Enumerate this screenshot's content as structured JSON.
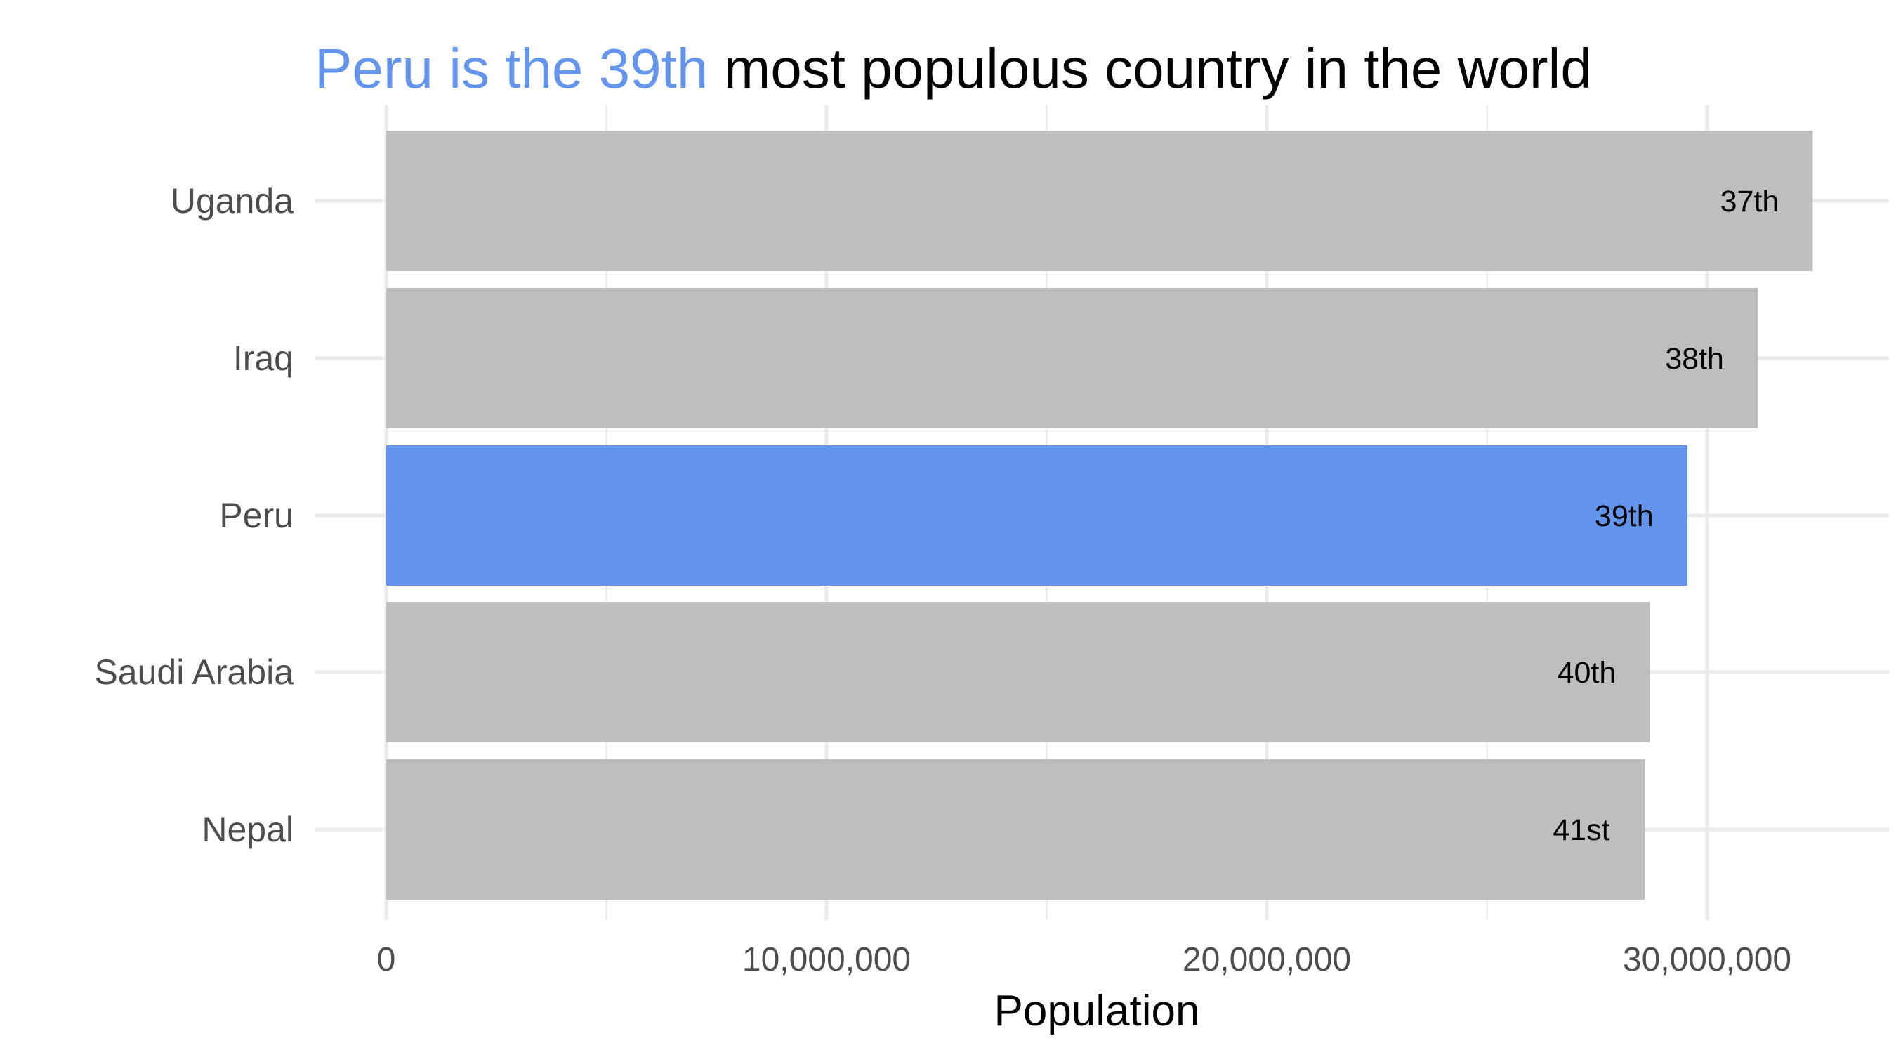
{
  "chart_data": {
    "type": "bar",
    "orientation": "horizontal",
    "title": {
      "highlight": "Peru is the 39th",
      "rest": " most populous country in the world"
    },
    "xlabel": "Population",
    "ylabel": "",
    "xlim": [
      0,
      33000000
    ],
    "x_ticks": [
      0,
      10000000,
      20000000,
      30000000
    ],
    "x_tick_labels": [
      "0",
      "10,000,000",
      "20,000,000",
      "30,000,000"
    ],
    "grid": true,
    "legend": "none",
    "categories": [
      "Uganda",
      "Iraq",
      "Peru",
      "Saudi Arabia",
      "Nepal"
    ],
    "values": [
      32400000,
      31150000,
      29550000,
      28700000,
      28580000
    ],
    "labels": [
      "37th",
      "38th",
      "39th",
      "40th",
      "41st"
    ],
    "highlighted_category": "Peru",
    "colors": {
      "highlight": "#6495ED",
      "default": "#BEBEBE",
      "title_rest": "#000000",
      "axis_text": "#4D4D4D",
      "grid": "#EBEBEB",
      "bar_label": "#000000"
    }
  }
}
